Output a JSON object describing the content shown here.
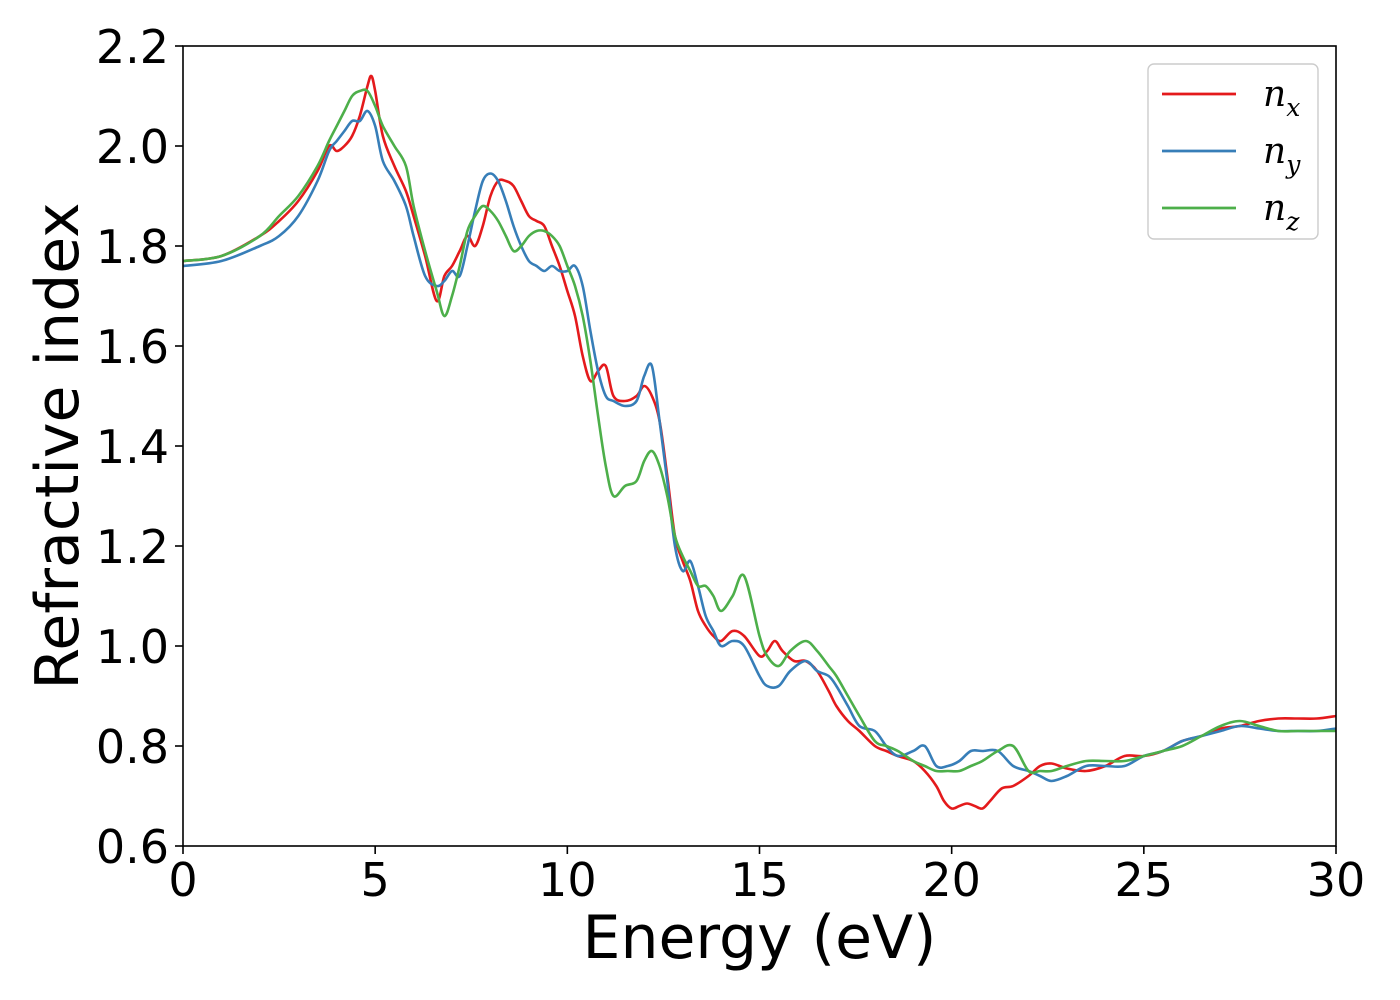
{
  "chart_data": {
    "type": "line",
    "xlabel": "Energy (eV)",
    "ylabel": "Refractive index",
    "xlim": [
      0,
      30
    ],
    "ylim": [
      0.6,
      2.2
    ],
    "xticks": [
      0,
      5,
      10,
      15,
      20,
      25,
      30
    ],
    "yticks": [
      "0.6",
      "0.8",
      "1.0",
      "1.2",
      "1.4",
      "1.6",
      "1.8",
      "2.0",
      "2.2"
    ],
    "legend_position": "top-right",
    "grid": false,
    "series": [
      {
        "name": "n",
        "subscript": "x",
        "color": "#e41a1c",
        "x": [
          0,
          1,
          2,
          2.5,
          3,
          3.5,
          3.8,
          4.0,
          4.2,
          4.4,
          4.6,
          4.8,
          4.9,
          5.0,
          5.2,
          5.5,
          5.8,
          6.0,
          6.3,
          6.6,
          6.8,
          7.0,
          7.2,
          7.4,
          7.6,
          7.8,
          8.0,
          8.2,
          8.4,
          8.6,
          8.8,
          9.0,
          9.2,
          9.4,
          9.6,
          9.8,
          10.0,
          10.2,
          10.4,
          10.6,
          10.8,
          11.0,
          11.2,
          11.5,
          11.8,
          12.0,
          12.2,
          12.4,
          12.6,
          12.8,
          13.0,
          13.2,
          13.4,
          13.6,
          13.8,
          14.0,
          14.3,
          14.6,
          15.0,
          15.2,
          15.4,
          15.6,
          15.9,
          16.2,
          16.5,
          16.8,
          17.0,
          17.3,
          17.6,
          18.0,
          18.3,
          18.6,
          19.0,
          19.3,
          19.6,
          19.8,
          20.0,
          20.2,
          20.4,
          20.6,
          20.8,
          21.0,
          21.3,
          21.6,
          22.0,
          22.3,
          22.6,
          23.0,
          23.5,
          24.0,
          24.5,
          25.0,
          25.5,
          26.0,
          26.5,
          27.0,
          27.5,
          28.0,
          28.5,
          29.0,
          29.5,
          30.0
        ],
        "y": [
          1.77,
          1.78,
          1.82,
          1.85,
          1.89,
          1.95,
          2.0,
          1.99,
          2.0,
          2.02,
          2.06,
          2.12,
          2.14,
          2.11,
          2.02,
          1.96,
          1.91,
          1.86,
          1.78,
          1.69,
          1.74,
          1.76,
          1.79,
          1.82,
          1.8,
          1.84,
          1.9,
          1.93,
          1.93,
          1.92,
          1.89,
          1.86,
          1.85,
          1.84,
          1.8,
          1.76,
          1.71,
          1.66,
          1.58,
          1.53,
          1.55,
          1.56,
          1.5,
          1.49,
          1.5,
          1.52,
          1.5,
          1.45,
          1.34,
          1.22,
          1.17,
          1.13,
          1.07,
          1.04,
          1.02,
          1.01,
          1.03,
          1.02,
          0.98,
          0.99,
          1.01,
          0.99,
          0.97,
          0.97,
          0.95,
          0.91,
          0.88,
          0.85,
          0.83,
          0.8,
          0.79,
          0.78,
          0.77,
          0.75,
          0.72,
          0.69,
          0.675,
          0.68,
          0.685,
          0.68,
          0.675,
          0.69,
          0.715,
          0.72,
          0.74,
          0.76,
          0.765,
          0.755,
          0.75,
          0.76,
          0.78,
          0.78,
          0.79,
          0.81,
          0.82,
          0.835,
          0.84,
          0.85,
          0.855,
          0.855,
          0.855,
          0.86
        ]
      },
      {
        "name": "n",
        "subscript": "y",
        "color": "#377eb8",
        "x": [
          0,
          1,
          2,
          2.5,
          3,
          3.5,
          3.8,
          4.0,
          4.2,
          4.4,
          4.6,
          4.8,
          5.0,
          5.2,
          5.5,
          5.8,
          6.0,
          6.3,
          6.6,
          6.8,
          7.0,
          7.2,
          7.4,
          7.6,
          7.8,
          8.0,
          8.2,
          8.4,
          8.6,
          8.8,
          9.0,
          9.2,
          9.4,
          9.6,
          9.8,
          10.0,
          10.2,
          10.4,
          10.6,
          10.8,
          11.0,
          11.2,
          11.5,
          11.8,
          12.0,
          12.2,
          12.4,
          12.6,
          12.8,
          13.0,
          13.2,
          13.4,
          13.6,
          13.8,
          14.0,
          14.3,
          14.6,
          15.0,
          15.2,
          15.5,
          15.8,
          16.2,
          16.5,
          16.8,
          17.0,
          17.3,
          17.6,
          18.0,
          18.3,
          18.6,
          19.0,
          19.3,
          19.6,
          19.9,
          20.2,
          20.5,
          20.8,
          21.2,
          21.6,
          22.0,
          22.3,
          22.6,
          23.0,
          23.5,
          24.0,
          24.5,
          25.0,
          25.5,
          26.0,
          26.5,
          27.0,
          27.5,
          28.0,
          28.5,
          29.0,
          29.5,
          30.0
        ],
        "y": [
          1.76,
          1.77,
          1.8,
          1.82,
          1.86,
          1.93,
          1.99,
          2.01,
          2.03,
          2.05,
          2.05,
          2.07,
          2.04,
          1.97,
          1.93,
          1.88,
          1.82,
          1.74,
          1.72,
          1.73,
          1.75,
          1.74,
          1.8,
          1.87,
          1.93,
          1.945,
          1.93,
          1.89,
          1.84,
          1.8,
          1.77,
          1.76,
          1.75,
          1.76,
          1.75,
          1.75,
          1.76,
          1.72,
          1.63,
          1.55,
          1.5,
          1.49,
          1.48,
          1.49,
          1.54,
          1.56,
          1.45,
          1.33,
          1.2,
          1.15,
          1.17,
          1.12,
          1.06,
          1.03,
          1.0,
          1.01,
          1.0,
          0.94,
          0.92,
          0.92,
          0.95,
          0.97,
          0.95,
          0.94,
          0.92,
          0.88,
          0.84,
          0.83,
          0.8,
          0.78,
          0.79,
          0.8,
          0.76,
          0.76,
          0.77,
          0.79,
          0.79,
          0.79,
          0.76,
          0.75,
          0.74,
          0.73,
          0.74,
          0.76,
          0.76,
          0.76,
          0.78,
          0.79,
          0.81,
          0.82,
          0.83,
          0.84,
          0.835,
          0.83,
          0.83,
          0.83,
          0.835
        ]
      },
      {
        "name": "n",
        "subscript": "z",
        "color": "#4daf4a",
        "x": [
          0,
          1,
          2,
          2.5,
          3,
          3.5,
          3.8,
          4.0,
          4.2,
          4.4,
          4.6,
          4.8,
          5.0,
          5.2,
          5.5,
          5.8,
          6.0,
          6.3,
          6.6,
          6.8,
          7.0,
          7.2,
          7.4,
          7.6,
          7.8,
          8.0,
          8.2,
          8.4,
          8.6,
          8.8,
          9.0,
          9.2,
          9.4,
          9.6,
          9.8,
          10.0,
          10.2,
          10.4,
          10.6,
          10.8,
          11.0,
          11.2,
          11.5,
          11.8,
          12.0,
          12.2,
          12.4,
          12.6,
          12.8,
          13.0,
          13.2,
          13.4,
          13.6,
          13.8,
          14.0,
          14.3,
          14.6,
          15.0,
          15.2,
          15.5,
          15.8,
          16.2,
          16.5,
          16.8,
          17.0,
          17.3,
          17.6,
          18.0,
          18.3,
          18.6,
          19.0,
          19.3,
          19.6,
          19.9,
          20.2,
          20.5,
          20.8,
          21.2,
          21.6,
          22.0,
          22.3,
          22.6,
          23.0,
          23.5,
          24.0,
          24.5,
          25.0,
          25.5,
          26.0,
          26.5,
          27.0,
          27.5,
          28.0,
          28.5,
          29.0,
          29.5,
          30.0
        ],
        "y": [
          1.77,
          1.78,
          1.82,
          1.86,
          1.9,
          1.96,
          2.01,
          2.04,
          2.07,
          2.1,
          2.11,
          2.11,
          2.08,
          2.04,
          2.0,
          1.96,
          1.88,
          1.79,
          1.71,
          1.66,
          1.7,
          1.76,
          1.83,
          1.86,
          1.88,
          1.87,
          1.85,
          1.82,
          1.79,
          1.8,
          1.82,
          1.83,
          1.83,
          1.82,
          1.8,
          1.76,
          1.72,
          1.66,
          1.57,
          1.46,
          1.36,
          1.3,
          1.32,
          1.33,
          1.37,
          1.39,
          1.36,
          1.3,
          1.22,
          1.18,
          1.15,
          1.12,
          1.12,
          1.1,
          1.07,
          1.1,
          1.14,
          1.02,
          0.98,
          0.96,
          0.99,
          1.01,
          0.99,
          0.96,
          0.94,
          0.9,
          0.86,
          0.81,
          0.8,
          0.79,
          0.77,
          0.76,
          0.75,
          0.75,
          0.75,
          0.76,
          0.77,
          0.79,
          0.8,
          0.75,
          0.75,
          0.75,
          0.76,
          0.77,
          0.77,
          0.77,
          0.78,
          0.79,
          0.8,
          0.82,
          0.84,
          0.85,
          0.84,
          0.83,
          0.83,
          0.83,
          0.83
        ]
      }
    ]
  }
}
